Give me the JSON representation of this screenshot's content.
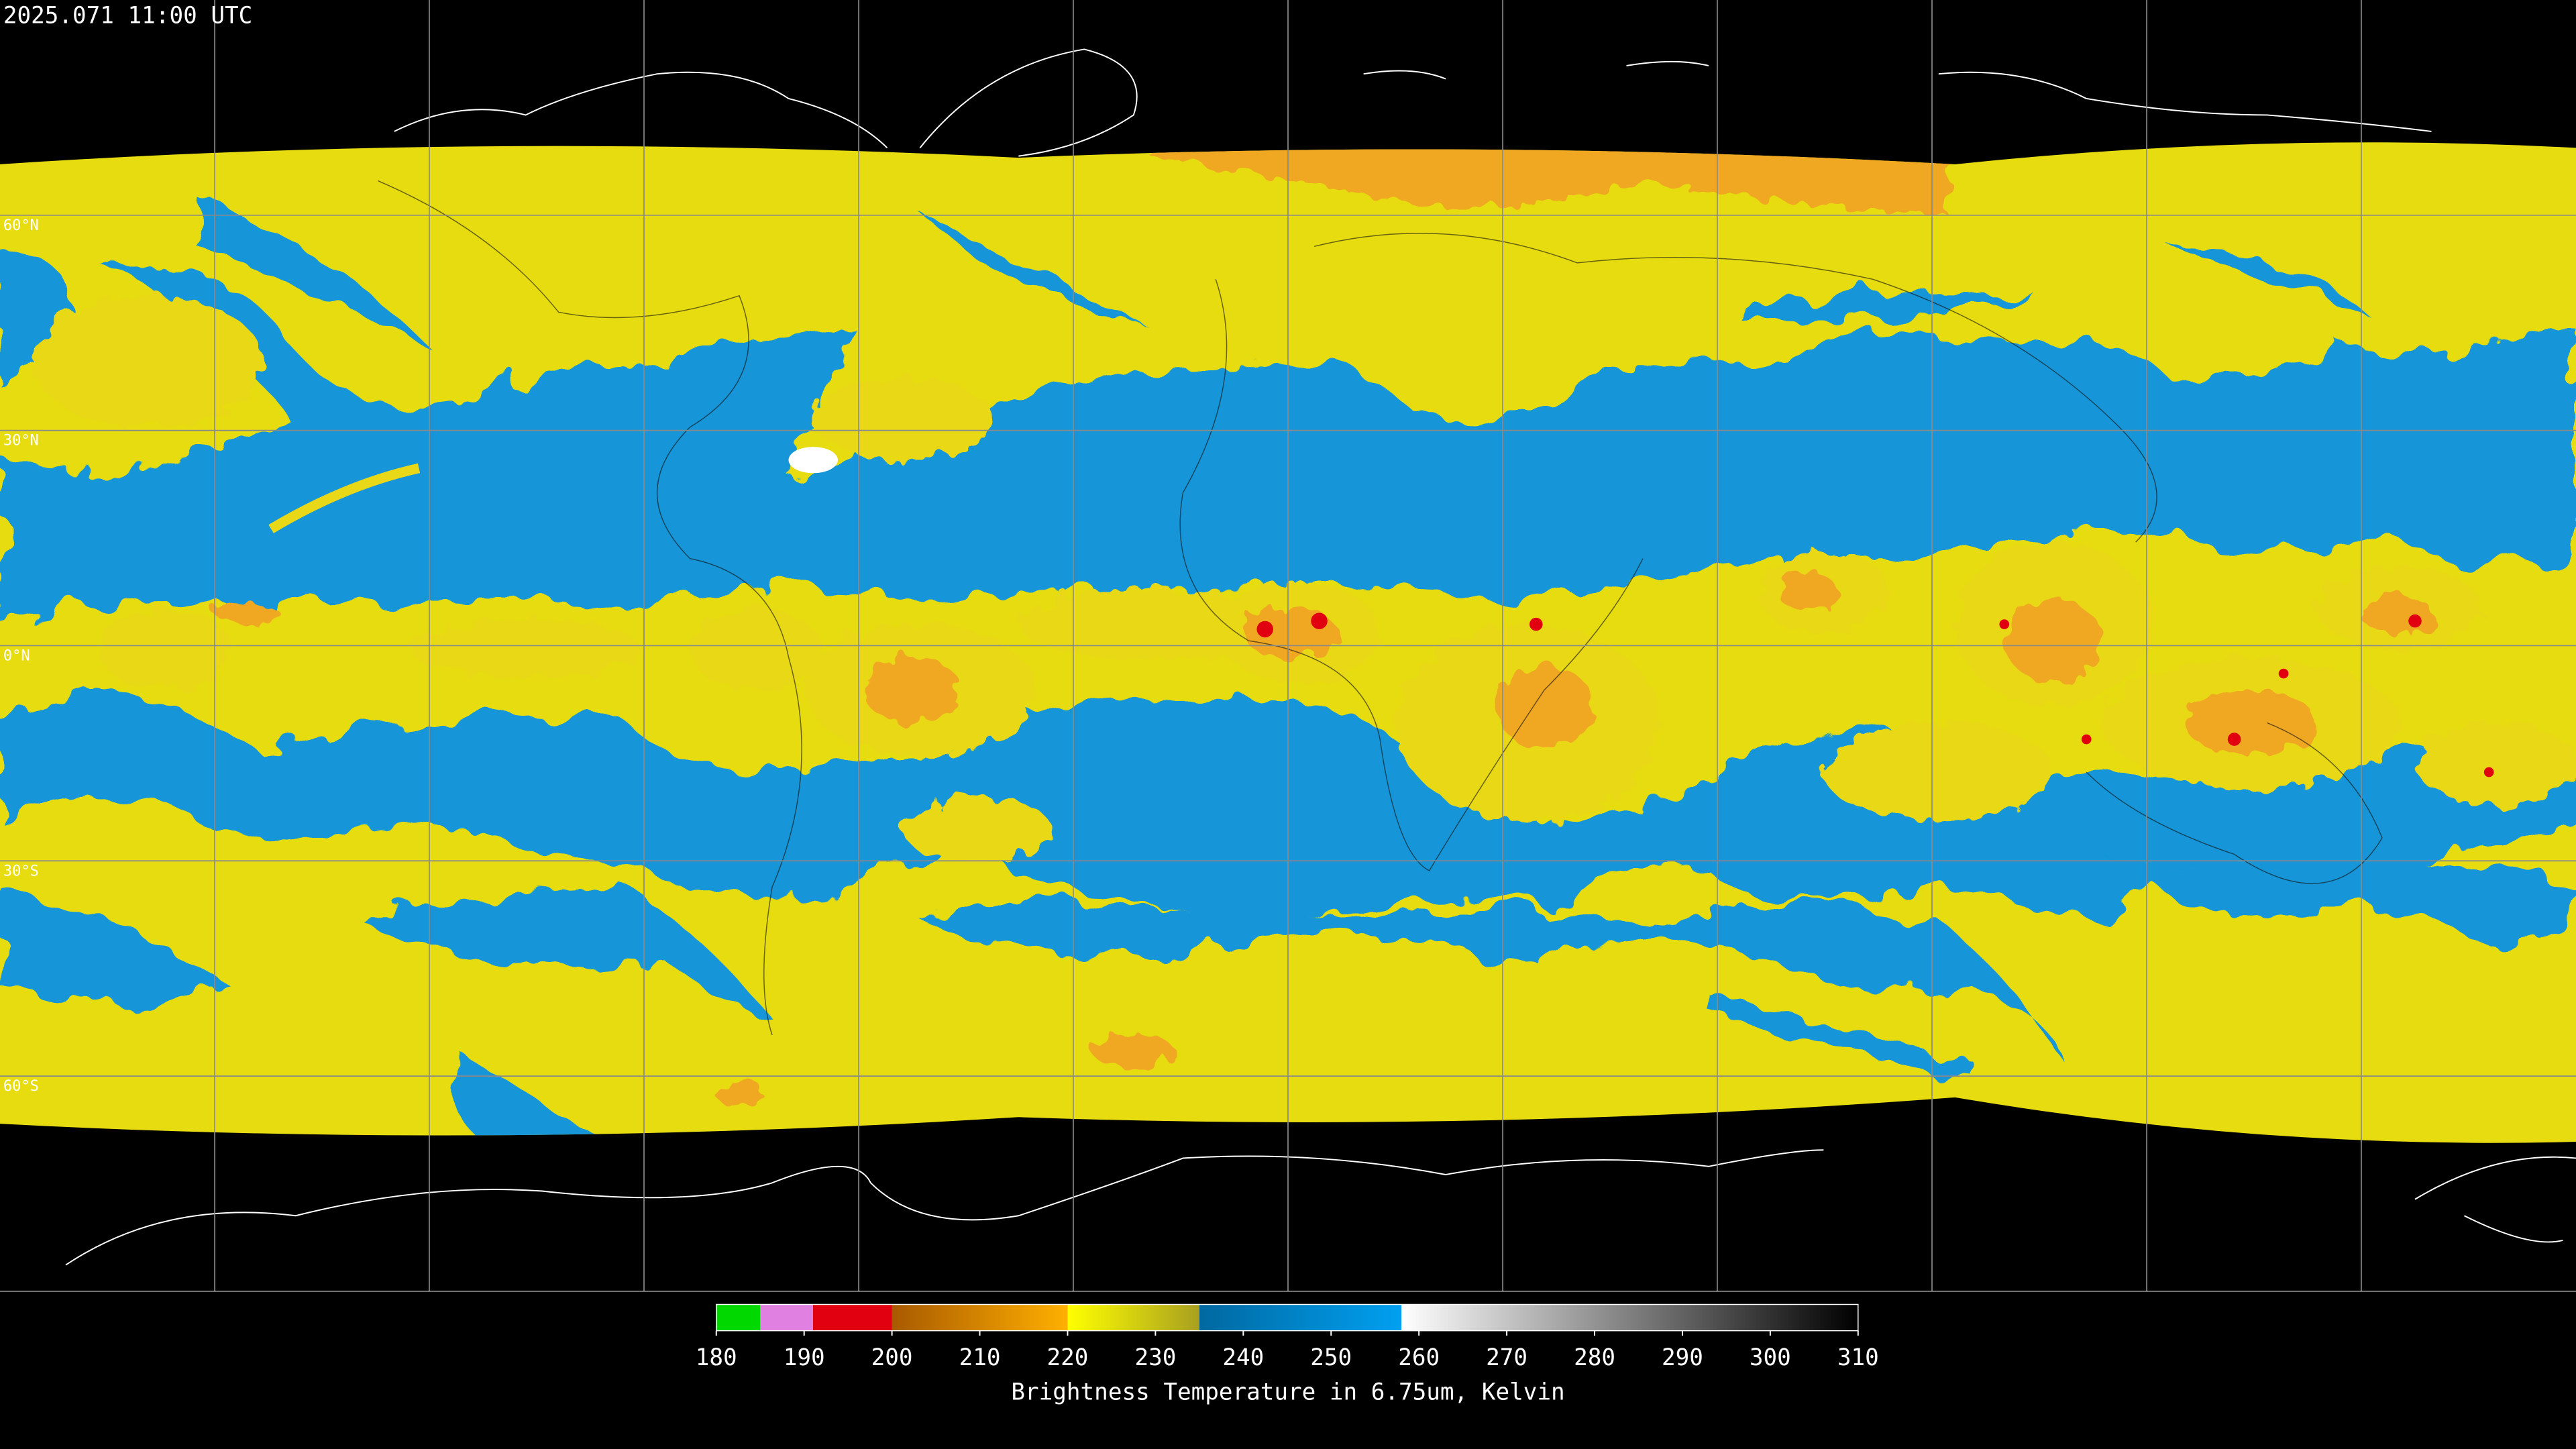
{
  "header": {
    "timestamp": "2025.071 11:00 UTC"
  },
  "map": {
    "latitude_labels": [
      "60°N",
      "30°N",
      "0°N",
      "30°S",
      "60°S"
    ]
  },
  "colorbar": {
    "label": "Brightness Temperature in 6.75um, Kelvin",
    "range": [
      180,
      310
    ],
    "ticks": [
      180,
      190,
      200,
      210,
      220,
      230,
      240,
      250,
      260,
      270,
      280,
      290,
      300,
      310
    ],
    "stops": [
      {
        "value": 180,
        "color": "#00d800"
      },
      {
        "value": 185,
        "color": "#00d800"
      },
      {
        "value": 185,
        "color": "#e080e0"
      },
      {
        "value": 191,
        "color": "#e080e0"
      },
      {
        "value": 191,
        "color": "#e00010"
      },
      {
        "value": 200,
        "color": "#e00010"
      },
      {
        "value": 200,
        "color": "#a85a00"
      },
      {
        "value": 220,
        "color": "#ffb000"
      },
      {
        "value": 220,
        "color": "#ffff00"
      },
      {
        "value": 235,
        "color": "#a8a020"
      },
      {
        "value": 235,
        "color": "#0068a0"
      },
      {
        "value": 258,
        "color": "#00a0f0"
      },
      {
        "value": 258,
        "color": "#ffffff"
      },
      {
        "value": 310,
        "color": "#000000"
      }
    ]
  }
}
